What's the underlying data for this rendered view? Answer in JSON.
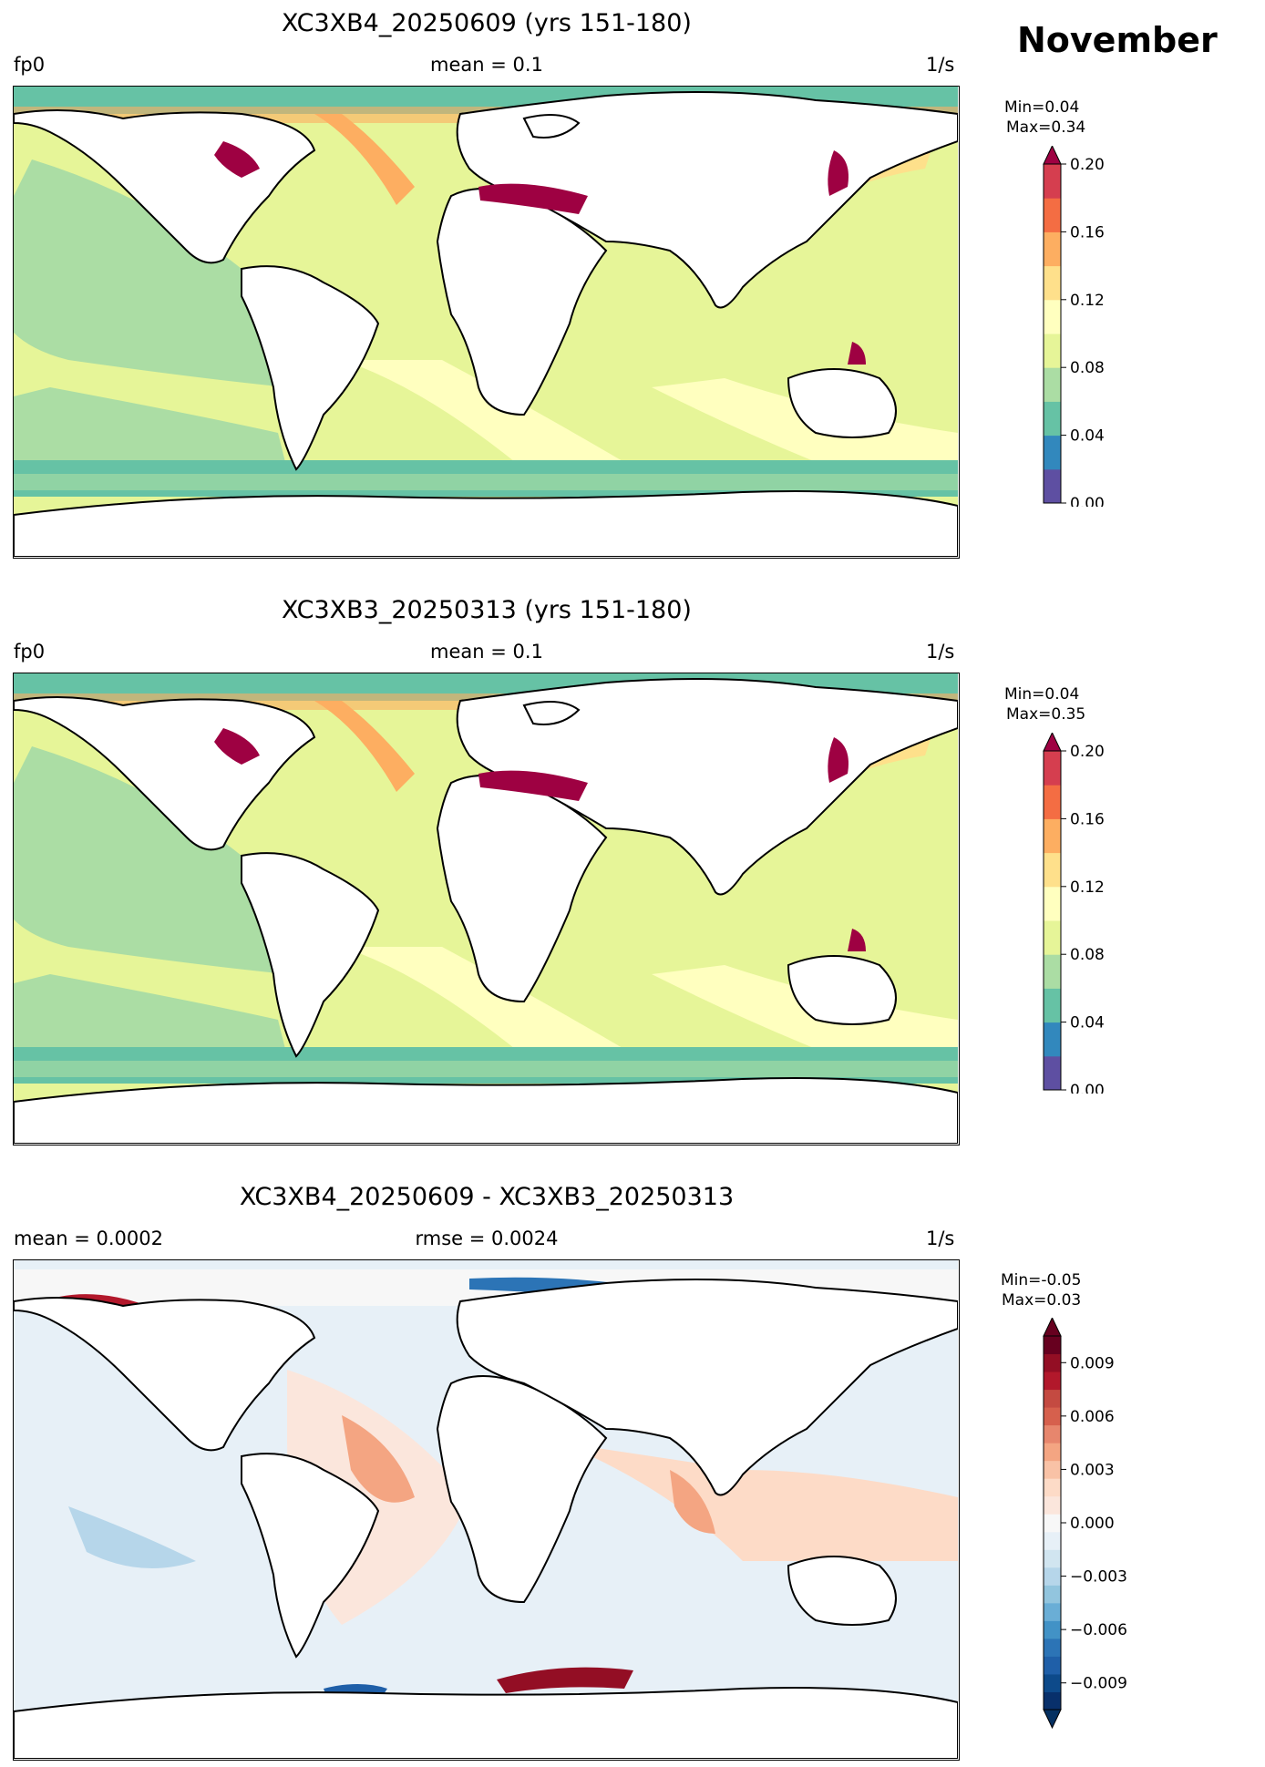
{
  "month": "November",
  "panels": [
    {
      "title": "XC3XB4_20250609 (yrs 151-180)",
      "left": "fp0",
      "center": "mean = 0.1",
      "right": "1/s",
      "min": "Min=0.04",
      "max": "Max=0.34",
      "colorbar": {
        "ticks": [
          "0.00",
          "0.04",
          "0.08",
          "0.12",
          "0.16",
          "0.20"
        ],
        "colors": [
          "#5e4fa2",
          "#3288bd",
          "#66c2a5",
          "#abdda4",
          "#e6f598",
          "#ffffbf",
          "#fee08b",
          "#fdae61",
          "#f46d43",
          "#d53e4f"
        ],
        "extend_color": "#9e0142"
      }
    },
    {
      "title": "XC3XB3_20250313 (yrs 151-180)",
      "left": "fp0",
      "center": "mean = 0.1",
      "right": "1/s",
      "min": "Min=0.04",
      "max": "Max=0.35",
      "colorbar": {
        "ticks": [
          "0.00",
          "0.04",
          "0.08",
          "0.12",
          "0.16",
          "0.20"
        ],
        "colors": [
          "#5e4fa2",
          "#3288bd",
          "#66c2a5",
          "#abdda4",
          "#e6f598",
          "#ffffbf",
          "#fee08b",
          "#fdae61",
          "#f46d43",
          "#d53e4f"
        ],
        "extend_color": "#9e0142"
      }
    },
    {
      "title": "XC3XB4_20250609 - XC3XB3_20250313",
      "left": "mean = 0.0002",
      "center": "rmse = 0.0024",
      "right": "1/s",
      "min": "Min=-0.05",
      "max": "Max=0.03",
      "colorbar": {
        "ticks": [
          "−0.009",
          "−0.006",
          "−0.003",
          "0.000",
          "0.003",
          "0.006",
          "0.009"
        ],
        "colors": [
          "#08306b",
          "#0d4a8a",
          "#1f5fa8",
          "#2c74b6",
          "#4292c6",
          "#6aaed6",
          "#92c5de",
          "#b6d6ea",
          "#d1e5f0",
          "#e7f0f7",
          "#f7f7f7",
          "#fbe6dc",
          "#fddbc7",
          "#f9c2a6",
          "#f4a582",
          "#e7866d",
          "#d6604d",
          "#c44a41",
          "#b2182b",
          "#930e24",
          "#67001f"
        ],
        "extend_low": "#053061",
        "extend_high": "#67001f"
      }
    }
  ]
}
